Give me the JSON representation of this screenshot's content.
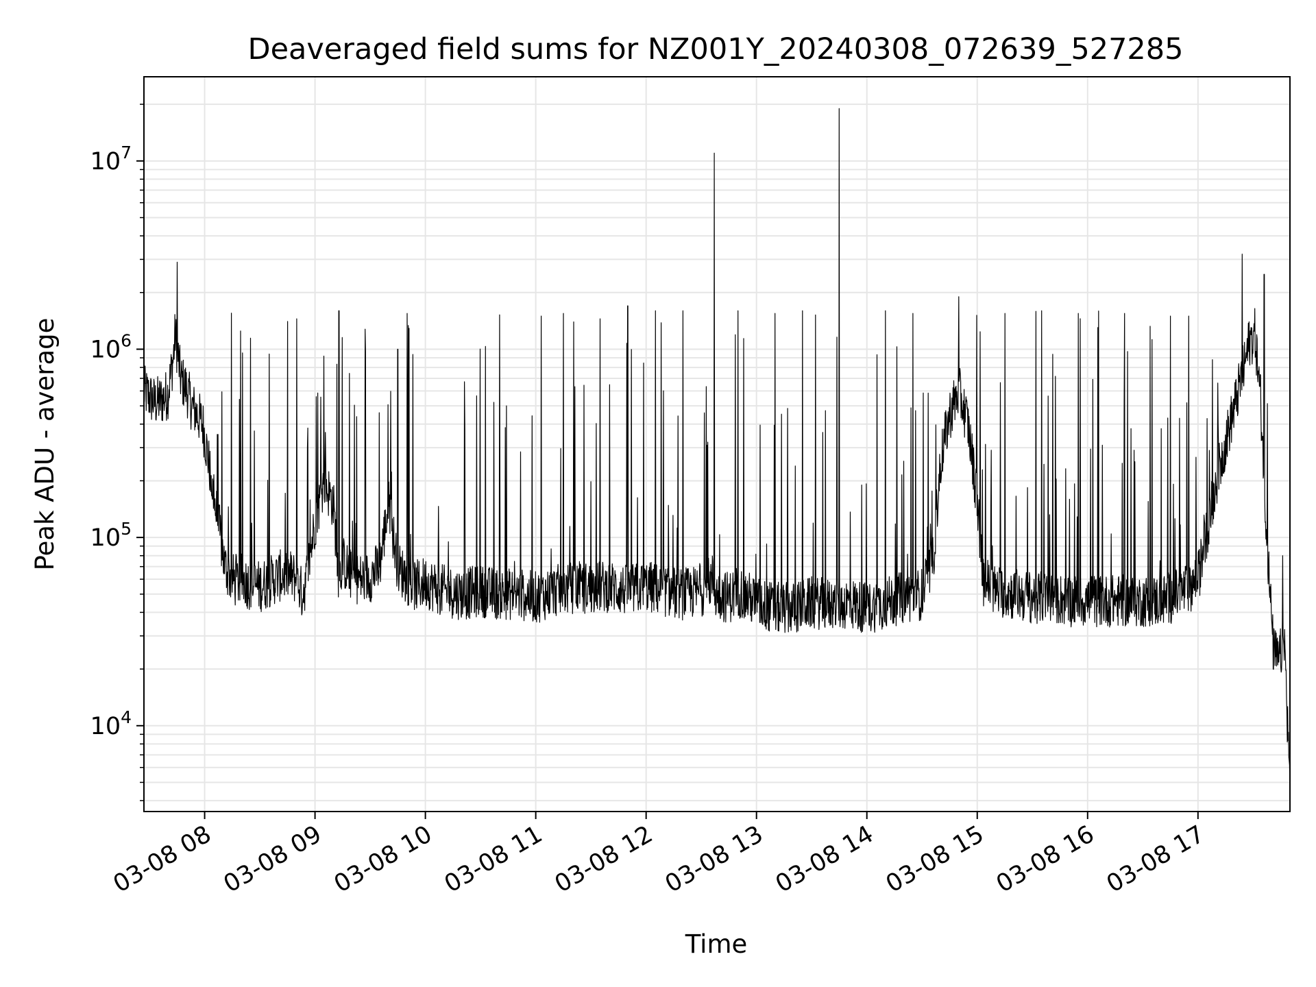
{
  "chart_data": {
    "type": "line",
    "title": "Deaveraged field sums for NZ001Y_20240308_072639_527285",
    "xlabel": "Time",
    "ylabel": "Peak ADU - average",
    "y_scale": "log",
    "ylim": [
      3500,
      28000000
    ],
    "xlim": [
      "2024-03-08 07:27",
      "2024-03-08 17:50"
    ],
    "grid": true,
    "line_color": "#000000",
    "grid_color": "#e6e6e6",
    "x_ticks": [
      {
        "value": "2024-03-08 08:00",
        "label": "03-08 08"
      },
      {
        "value": "2024-03-08 09:00",
        "label": "03-08 09"
      },
      {
        "value": "2024-03-08 10:00",
        "label": "03-08 10"
      },
      {
        "value": "2024-03-08 11:00",
        "label": "03-08 11"
      },
      {
        "value": "2024-03-08 12:00",
        "label": "03-08 12"
      },
      {
        "value": "2024-03-08 13:00",
        "label": "03-08 13"
      },
      {
        "value": "2024-03-08 14:00",
        "label": "03-08 14"
      },
      {
        "value": "2024-03-08 15:00",
        "label": "03-08 15"
      },
      {
        "value": "2024-03-08 16:00",
        "label": "03-08 16"
      },
      {
        "value": "2024-03-08 17:00",
        "label": "03-08 17"
      }
    ],
    "y_ticks": [
      {
        "value": 10000,
        "base": "10",
        "exp": "4"
      },
      {
        "value": 100000,
        "base": "10",
        "exp": "5"
      },
      {
        "value": 1000000,
        "base": "10",
        "exp": "6"
      },
      {
        "value": 10000000,
        "base": "10",
        "exp": "7"
      }
    ],
    "series": [
      {
        "x": [
          "2024-03-08 07:27",
          "2024-03-08 07:30",
          "2024-03-08 07:33",
          "2024-03-08 07:37",
          "2024-03-08 07:40",
          "2024-03-08 07:43",
          "2024-03-08 07:44",
          "2024-03-08 07:47",
          "2024-03-08 07:50",
          "2024-03-08 07:53",
          "2024-03-08 07:56",
          "2024-03-08 07:59",
          "2024-03-08 08:02",
          "2024-03-08 08:05",
          "2024-03-08 08:08",
          "2024-03-08 08:11",
          "2024-03-08 08:14",
          "2024-03-08 08:17",
          "2024-03-08 08:20",
          "2024-03-08 08:25",
          "2024-03-08 08:30",
          "2024-03-08 08:35",
          "2024-03-08 08:40",
          "2024-03-08 08:45",
          "2024-03-08 08:50",
          "2024-03-08 08:53",
          "2024-03-08 08:55",
          "2024-03-08 09:00",
          "2024-03-08 09:05",
          "2024-03-08 09:10",
          "2024-03-08 09:13",
          "2024-03-08 09:15",
          "2024-03-08 09:20",
          "2024-03-08 09:25",
          "2024-03-08 09:30",
          "2024-03-08 09:35",
          "2024-03-08 09:40",
          "2024-03-08 09:45",
          "2024-03-08 09:50",
          "2024-03-08 09:55",
          "2024-03-08 10:00",
          "2024-03-08 10:10",
          "2024-03-08 10:20",
          "2024-03-08 10:30",
          "2024-03-08 10:40",
          "2024-03-08 10:50",
          "2024-03-08 11:00",
          "2024-03-08 11:10",
          "2024-03-08 11:20",
          "2024-03-08 11:30",
          "2024-03-08 11:40",
          "2024-03-08 11:50",
          "2024-03-08 12:00",
          "2024-03-08 12:10",
          "2024-03-08 12:20",
          "2024-03-08 12:30",
          "2024-03-08 12:36",
          "2024-03-08 12:38",
          "2024-03-08 12:45",
          "2024-03-08 12:50",
          "2024-03-08 13:00",
          "2024-03-08 13:10",
          "2024-03-08 13:20",
          "2024-03-08 13:30",
          "2024-03-08 13:40",
          "2024-03-08 13:44",
          "2024-03-08 13:46",
          "2024-03-08 13:50",
          "2024-03-08 14:00",
          "2024-03-08 14:10",
          "2024-03-08 14:20",
          "2024-03-08 14:30",
          "2024-03-08 14:36",
          "2024-03-08 14:40",
          "2024-03-08 14:45",
          "2024-03-08 14:50",
          "2024-03-08 14:55",
          "2024-03-08 15:00",
          "2024-03-08 15:03",
          "2024-03-08 15:10",
          "2024-03-08 15:20",
          "2024-03-08 15:30",
          "2024-03-08 15:40",
          "2024-03-08 15:50",
          "2024-03-08 16:00",
          "2024-03-08 16:10",
          "2024-03-08 16:20",
          "2024-03-08 16:30",
          "2024-03-08 16:40",
          "2024-03-08 16:50",
          "2024-03-08 17:00",
          "2024-03-08 17:05",
          "2024-03-08 17:10",
          "2024-03-08 17:15",
          "2024-03-08 17:20",
          "2024-03-08 17:25",
          "2024-03-08 17:28",
          "2024-03-08 17:31",
          "2024-03-08 17:34",
          "2024-03-08 17:38",
          "2024-03-08 17:41",
          "2024-03-08 17:44",
          "2024-03-08 17:47",
          "2024-03-08 17:50"
        ],
        "y": [
          600000,
          560000,
          520000,
          540000,
          580000,
          900000,
          1200000,
          700000,
          620000,
          500000,
          450000,
          400000,
          260000,
          160000,
          110000,
          70000,
          62000,
          58000,
          60000,
          56000,
          55000,
          58000,
          62000,
          64000,
          60000,
          50000,
          58000,
          120000,
          200000,
          150000,
          60000,
          75000,
          62000,
          60000,
          62000,
          70000,
          150000,
          70000,
          60000,
          55000,
          58000,
          52000,
          50000,
          52000,
          50000,
          50000,
          48000,
          52000,
          54000,
          54000,
          55000,
          52000,
          55000,
          52000,
          50000,
          52000,
          60000,
          50000,
          48000,
          52000,
          45000,
          42000,
          42000,
          45000,
          44000,
          44000,
          44000,
          45000,
          42000,
          45000,
          48000,
          50000,
          75000,
          250000,
          450000,
          600000,
          400000,
          160000,
          60000,
          52000,
          50000,
          48000,
          48000,
          46000,
          46000,
          46000,
          46000,
          46000,
          46000,
          50000,
          60000,
          110000,
          200000,
          320000,
          500000,
          800000,
          1100000,
          1200000,
          550000,
          80000,
          25000,
          22000,
          30000,
          4500
        ],
        "spikes": [
          {
            "x": "2024-03-08 07:45",
            "y": 2900000
          },
          {
            "x": "2024-03-08 08:50",
            "y": 1450000
          },
          {
            "x": "2024-03-08 09:13",
            "y": 1600000
          },
          {
            "x": "2024-03-08 09:45",
            "y": 1000000
          },
          {
            "x": "2024-03-08 09:50",
            "y": 1550000
          },
          {
            "x": "2024-03-08 10:44",
            "y": 500000
          },
          {
            "x": "2024-03-08 11:03",
            "y": 1500000
          },
          {
            "x": "2024-03-08 11:15",
            "y": 1550000
          },
          {
            "x": "2024-03-08 11:35",
            "y": 1450000
          },
          {
            "x": "2024-03-08 11:50",
            "y": 1700000
          },
          {
            "x": "2024-03-08 12:05",
            "y": 1600000
          },
          {
            "x": "2024-03-08 12:20",
            "y": 1600000
          },
          {
            "x": "2024-03-08 12:37",
            "y": 11000000
          },
          {
            "x": "2024-03-08 12:50",
            "y": 1600000
          },
          {
            "x": "2024-03-08 13:10",
            "y": 1550000
          },
          {
            "x": "2024-03-08 13:25",
            "y": 1600000
          },
          {
            "x": "2024-03-08 13:45",
            "y": 19000000
          },
          {
            "x": "2024-03-08 14:10",
            "y": 1600000
          },
          {
            "x": "2024-03-08 14:25",
            "y": 1550000
          },
          {
            "x": "2024-03-08 14:50",
            "y": 1900000
          },
          {
            "x": "2024-03-08 15:15",
            "y": 1550000
          },
          {
            "x": "2024-03-08 15:35",
            "y": 1600000
          },
          {
            "x": "2024-03-08 15:55",
            "y": 1550000
          },
          {
            "x": "2024-03-08 16:20",
            "y": 1550000
          },
          {
            "x": "2024-03-08 16:45",
            "y": 1500000
          },
          {
            "x": "2024-03-08 16:55",
            "y": 1500000
          },
          {
            "x": "2024-03-08 17:24",
            "y": 3200000
          },
          {
            "x": "2024-03-08 17:36",
            "y": 2500000
          },
          {
            "x": "2024-03-08 17:46",
            "y": 80000
          }
        ]
      }
    ]
  }
}
